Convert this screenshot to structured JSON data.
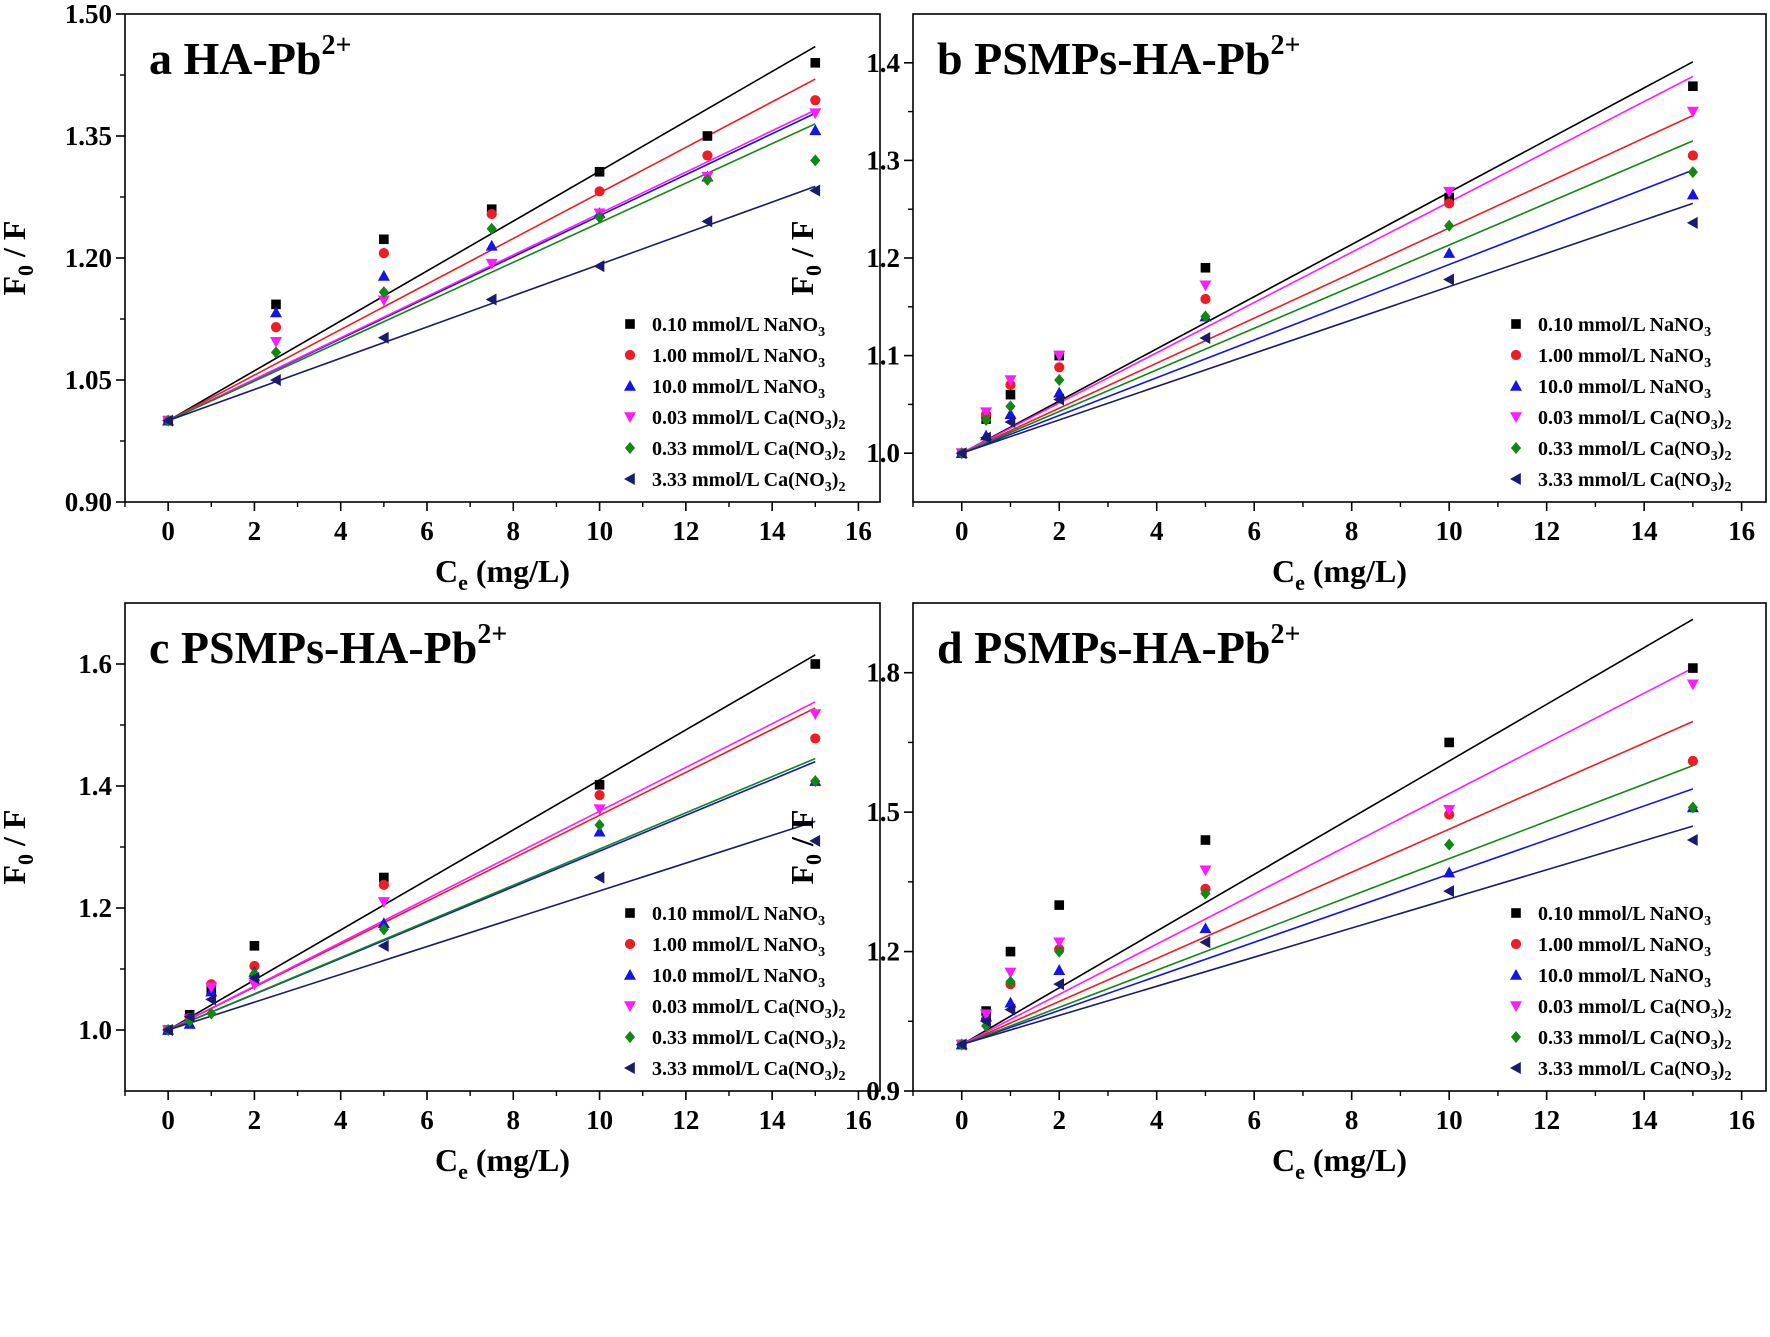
{
  "colors": {
    "NaNO3_0.10": "#000000",
    "NaNO3_1.00": "#ee1c24",
    "NaNO3_10.0": "#1414e6",
    "CaNO3_0.03": "#ff1aff",
    "CaNO3_0.33": "#118811",
    "CaNO3_3.33": "#1a1a70"
  },
  "chart_data": [
    {
      "type": "scatter",
      "panel_letter": "a",
      "title": "HA-Pb",
      "title_sup": "2+",
      "xlabel": "C",
      "xlabel_sub": "e",
      "xlabel_unit": " (mg/L)",
      "ylabel": "F",
      "ylabel_sub": "0",
      "ylabel_rest": " / F",
      "xlim": [
        -1,
        16.5
      ],
      "ylim": [
        0.9,
        1.5
      ],
      "xticks": [
        0,
        2,
        4,
        6,
        8,
        10,
        12,
        14,
        16
      ],
      "xtick_labels": [
        "0",
        "2",
        "4",
        "6",
        "8",
        "10",
        "12",
        "14",
        "16"
      ],
      "yticks": [
        0.9,
        1.05,
        1.2,
        1.35,
        1.5
      ],
      "ytick_labels": [
        "0.90",
        "1.05",
        "1.20",
        "1.35",
        "1.50"
      ],
      "fit_x": [
        0,
        15
      ],
      "legend_position": "bottom-right",
      "series": [
        {
          "name": "0.10 mmol/L NaNO",
          "sub": "3",
          "color_key": "NaNO3_0.10",
          "marker": "square",
          "x": [
            0,
            2.5,
            5,
            7.5,
            10,
            12.5,
            15
          ],
          "values": [
            1.0,
            1.143,
            1.223,
            1.26,
            1.306,
            1.35,
            1.44
          ],
          "fit": [
            1.0,
            1.46
          ]
        },
        {
          "name": "1.00 mmol/L NaNO",
          "sub": "3",
          "color_key": "NaNO3_1.00",
          "marker": "circle",
          "x": [
            0,
            2.5,
            5,
            7.5,
            10,
            12.5,
            15
          ],
          "values": [
            1.0,
            1.115,
            1.206,
            1.254,
            1.282,
            1.326,
            1.394
          ],
          "fit": [
            1.0,
            1.42
          ]
        },
        {
          "name": "10.0 mmol/L NaNO",
          "sub": "3",
          "color_key": "NaNO3_10.0",
          "marker": "triangle-up",
          "x": [
            0,
            2.5,
            5,
            7.5,
            10,
            12.5,
            15
          ],
          "values": [
            1.0,
            1.133,
            1.178,
            1.215,
            1.255,
            1.3,
            1.357
          ],
          "fit": [
            1.0,
            1.378
          ]
        },
        {
          "name": "0.03 mmol/L Ca(NO",
          "sub": "3",
          "suffix": ")",
          "suffix_sub": "2",
          "color_key": "CaNO3_0.03",
          "marker": "triangle-down",
          "x": [
            0,
            2.5,
            5,
            7.5,
            10,
            12.5,
            15
          ],
          "values": [
            1.0,
            1.097,
            1.148,
            1.193,
            1.255,
            1.3,
            1.378
          ],
          "fit": [
            1.0,
            1.382
          ]
        },
        {
          "name": "0.33 mmol/L Ca(NO",
          "sub": "3",
          "suffix": ")",
          "suffix_sub": "2",
          "color_key": "CaNO3_0.33",
          "marker": "diamond",
          "x": [
            0,
            2.5,
            5,
            7.5,
            10,
            12.5,
            15
          ],
          "values": [
            1.0,
            1.084,
            1.158,
            1.236,
            1.25,
            1.296,
            1.32
          ],
          "fit": [
            1.0,
            1.365
          ]
        },
        {
          "name": "3.33 mmol/L Ca(NO",
          "sub": "3",
          "suffix": ")",
          "suffix_sub": "2",
          "color_key": "CaNO3_3.33",
          "marker": "triangle-left",
          "x": [
            0,
            2.5,
            5,
            7.5,
            10,
            12.5,
            15
          ],
          "values": [
            1.0,
            1.05,
            1.102,
            1.149,
            1.19,
            1.245,
            1.283
          ],
          "fit": [
            1.0,
            1.288
          ]
        }
      ]
    },
    {
      "type": "scatter",
      "panel_letter": "b",
      "title": "PSMPs-HA-Pb",
      "title_sup": "2+",
      "xlabel": "C",
      "xlabel_sub": "e",
      "xlabel_unit": " (mg/L)",
      "ylabel": "F",
      "ylabel_sub": "0",
      "ylabel_rest": " / F",
      "xlim": [
        -1,
        16.5
      ],
      "ylim": [
        0.95,
        1.45
      ],
      "xticks": [
        0,
        2,
        4,
        6,
        8,
        10,
        12,
        14,
        16
      ],
      "xtick_labels": [
        "0",
        "2",
        "4",
        "6",
        "8",
        "10",
        "12",
        "14",
        "16"
      ],
      "yticks": [
        1.0,
        1.1,
        1.2,
        1.3,
        1.4
      ],
      "ytick_labels": [
        "1.0",
        "1.1",
        "1.2",
        "1.3",
        "1.4"
      ],
      "fit_x": [
        0,
        15
      ],
      "legend_position": "bottom-right",
      "series": [
        {
          "name": "0.10 mmol/L NaNO",
          "sub": "3",
          "color_key": "NaNO3_0.10",
          "marker": "square",
          "x": [
            0,
            0.5,
            1,
            2,
            5,
            10,
            15
          ],
          "values": [
            1.0,
            1.035,
            1.06,
            1.1,
            1.19,
            1.262,
            1.376
          ],
          "fit": [
            1.0,
            1.401
          ]
        },
        {
          "name": "1.00 mmol/L NaNO",
          "sub": "3",
          "color_key": "NaNO3_1.00",
          "marker": "circle",
          "x": [
            0,
            0.5,
            1,
            2,
            5,
            10,
            15
          ],
          "values": [
            1.0,
            1.04,
            1.07,
            1.088,
            1.158,
            1.256,
            1.305
          ],
          "fit": [
            1.0,
            1.346
          ]
        },
        {
          "name": "10.0 mmol/L NaNO",
          "sub": "3",
          "color_key": "NaNO3_10.0",
          "marker": "triangle-up",
          "x": [
            0,
            0.5,
            1,
            2,
            5,
            10,
            15
          ],
          "values": [
            1.0,
            1.018,
            1.04,
            1.062,
            1.14,
            1.205,
            1.265
          ],
          "fit": [
            1.0,
            1.29
          ]
        },
        {
          "name": "0.03 mmol/L Ca(NO",
          "sub": "3",
          "suffix": ")",
          "suffix_sub": "2",
          "color_key": "CaNO3_0.03",
          "marker": "triangle-down",
          "x": [
            0,
            0.5,
            1,
            2,
            5,
            10,
            15
          ],
          "values": [
            1.0,
            1.042,
            1.075,
            1.1,
            1.172,
            1.268,
            1.35
          ],
          "fit": [
            1.0,
            1.386
          ]
        },
        {
          "name": "0.33 mmol/L Ca(NO",
          "sub": "3",
          "suffix": ")",
          "suffix_sub": "2",
          "color_key": "CaNO3_0.33",
          "marker": "diamond",
          "x": [
            0,
            0.5,
            1,
            2,
            5,
            10,
            15
          ],
          "values": [
            1.0,
            1.034,
            1.048,
            1.075,
            1.14,
            1.233,
            1.288
          ],
          "fit": [
            1.0,
            1.32
          ]
        },
        {
          "name": "3.33 mmol/L Ca(NO",
          "sub": "3",
          "suffix": ")",
          "suffix_sub": "2",
          "color_key": "CaNO3_3.33",
          "marker": "triangle-left",
          "x": [
            0,
            0.5,
            1,
            2,
            5,
            10,
            15
          ],
          "values": [
            1.0,
            1.016,
            1.032,
            1.055,
            1.118,
            1.178,
            1.236
          ],
          "fit": [
            1.0,
            1.256
          ]
        }
      ]
    },
    {
      "type": "scatter",
      "panel_letter": "c",
      "title": "PSMPs-HA-Pb",
      "title_sup": "2+",
      "xlabel": "C",
      "xlabel_sub": "e",
      "xlabel_unit": " (mg/L)",
      "ylabel": "F",
      "ylabel_sub": "0",
      "ylabel_rest": " / F",
      "xlim": [
        -1,
        16.5
      ],
      "ylim": [
        0.9,
        1.7
      ],
      "xticks": [
        0,
        2,
        4,
        6,
        8,
        10,
        12,
        14,
        16
      ],
      "xtick_labels": [
        "0",
        "2",
        "4",
        "6",
        "8",
        "10",
        "12",
        "14",
        "16"
      ],
      "yticks": [
        1.0,
        1.2,
        1.4,
        1.6
      ],
      "ytick_labels": [
        "1.0",
        "1.2",
        "1.4",
        "1.6"
      ],
      "fit_x": [
        0,
        15
      ],
      "legend_position": "bottom-right",
      "series": [
        {
          "name": "0.10 mmol/L NaNO",
          "sub": "3",
          "color_key": "NaNO3_0.10",
          "marker": "square",
          "x": [
            0,
            0.5,
            1,
            2,
            5,
            10,
            15
          ],
          "values": [
            1.0,
            1.025,
            1.065,
            1.138,
            1.25,
            1.402,
            1.6
          ],
          "fit": [
            1.0,
            1.615
          ]
        },
        {
          "name": "1.00 mmol/L NaNO",
          "sub": "3",
          "color_key": "NaNO3_1.00",
          "marker": "circle",
          "x": [
            0,
            0.5,
            1,
            2,
            5,
            10,
            15
          ],
          "values": [
            1.0,
            1.02,
            1.075,
            1.105,
            1.238,
            1.385,
            1.478
          ],
          "fit": [
            1.0,
            1.528
          ]
        },
        {
          "name": "10.0 mmol/L NaNO",
          "sub": "3",
          "color_key": "NaNO3_10.0",
          "marker": "triangle-up",
          "x": [
            0,
            0.5,
            1,
            2,
            5,
            10,
            15
          ],
          "values": [
            1.0,
            1.01,
            1.063,
            1.095,
            1.175,
            1.325,
            1.408
          ],
          "fit": [
            1.0,
            1.44
          ]
        },
        {
          "name": "0.03 mmol/L Ca(NO",
          "sub": "3",
          "suffix": ")",
          "suffix_sub": "2",
          "color_key": "CaNO3_0.03",
          "marker": "triangle-down",
          "x": [
            0,
            0.5,
            1,
            2,
            5,
            10,
            15
          ],
          "values": [
            1.0,
            1.018,
            1.07,
            1.075,
            1.21,
            1.362,
            1.518
          ],
          "fit": [
            1.0,
            1.538
          ]
        },
        {
          "name": "0.33 mmol/L Ca(NO",
          "sub": "3",
          "suffix": ")",
          "suffix_sub": "2",
          "color_key": "CaNO3_0.33",
          "marker": "diamond",
          "x": [
            0,
            0.5,
            1,
            2,
            5,
            10,
            15
          ],
          "values": [
            1.0,
            1.015,
            1.027,
            1.092,
            1.165,
            1.336,
            1.408
          ],
          "fit": [
            1.0,
            1.445
          ]
        },
        {
          "name": "3.33 mmol/L Ca(NO",
          "sub": "3",
          "suffix": ")",
          "suffix_sub": "2",
          "color_key": "CaNO3_3.33",
          "marker": "triangle-left",
          "x": [
            0,
            0.5,
            1,
            2,
            5,
            10,
            15
          ],
          "values": [
            1.0,
            1.022,
            1.05,
            1.085,
            1.138,
            1.25,
            1.31
          ],
          "fit": [
            1.0,
            1.342
          ]
        }
      ]
    },
    {
      "type": "scatter",
      "panel_letter": "d",
      "title": "PSMPs-HA-Pb",
      "title_sup": "2+",
      "xlabel": "C",
      "xlabel_sub": "e",
      "xlabel_unit": " (mg/L)",
      "ylabel": "F",
      "ylabel_sub": "0",
      "ylabel_rest": " / F",
      "xlim": [
        -1,
        16.5
      ],
      "ylim": [
        0.9,
        1.95
      ],
      "xticks": [
        0,
        2,
        4,
        6,
        8,
        10,
        12,
        14,
        16
      ],
      "xtick_labels": [
        "0",
        "2",
        "4",
        "6",
        "8",
        "10",
        "12",
        "14",
        "16"
      ],
      "yticks": [
        0.9,
        1.2,
        1.5,
        1.8
      ],
      "ytick_labels": [
        "0.9",
        "1.2",
        "1.5",
        "1.8"
      ],
      "fit_x": [
        0,
        15
      ],
      "legend_position": "bottom-right",
      "series": [
        {
          "name": "0.10 mmol/L NaNO",
          "sub": "3",
          "color_key": "NaNO3_0.10",
          "marker": "square",
          "x": [
            0,
            0.5,
            1,
            2,
            5,
            10,
            15
          ],
          "values": [
            1.0,
            1.072,
            1.2,
            1.3,
            1.44,
            1.65,
            1.81
          ],
          "fit": [
            1.0,
            1.915
          ]
        },
        {
          "name": "1.00 mmol/L NaNO",
          "sub": "3",
          "color_key": "NaNO3_1.00",
          "marker": "circle",
          "x": [
            0,
            0.5,
            1,
            2,
            5,
            10,
            15
          ],
          "values": [
            1.0,
            1.055,
            1.13,
            1.205,
            1.335,
            1.495,
            1.61
          ],
          "fit": [
            1.0,
            1.695
          ]
        },
        {
          "name": "10.0 mmol/L NaNO",
          "sub": "3",
          "color_key": "NaNO3_10.0",
          "marker": "triangle-up",
          "x": [
            0,
            0.5,
            1,
            2,
            5,
            10,
            15
          ],
          "values": [
            1.0,
            1.06,
            1.09,
            1.16,
            1.25,
            1.37,
            1.51
          ],
          "fit": [
            1.0,
            1.55
          ]
        },
        {
          "name": "0.03 mmol/L Ca(NO",
          "sub": "3",
          "suffix": ")",
          "suffix_sub": "2",
          "color_key": "CaNO3_0.03",
          "marker": "triangle-down",
          "x": [
            0,
            0.5,
            1,
            2,
            5,
            10,
            15
          ],
          "values": [
            1.0,
            1.065,
            1.155,
            1.22,
            1.375,
            1.505,
            1.775
          ],
          "fit": [
            1.0,
            1.81
          ]
        },
        {
          "name": "0.33 mmol/L Ca(NO",
          "sub": "3",
          "suffix": ")",
          "suffix_sub": "2",
          "color_key": "CaNO3_0.33",
          "marker": "diamond",
          "x": [
            0,
            0.5,
            1,
            2,
            5,
            10,
            15
          ],
          "values": [
            1.0,
            1.04,
            1.135,
            1.2,
            1.325,
            1.43,
            1.51
          ],
          "fit": [
            1.0,
            1.6
          ]
        },
        {
          "name": "3.33 mmol/L Ca(NO",
          "sub": "3",
          "suffix": ")",
          "suffix_sub": "2",
          "color_key": "CaNO3_3.33",
          "marker": "triangle-left",
          "x": [
            0,
            0.5,
            1,
            2,
            5,
            10,
            15
          ],
          "values": [
            1.0,
            1.05,
            1.075,
            1.13,
            1.22,
            1.33,
            1.44
          ],
          "fit": [
            1.0,
            1.47
          ]
        }
      ]
    }
  ]
}
